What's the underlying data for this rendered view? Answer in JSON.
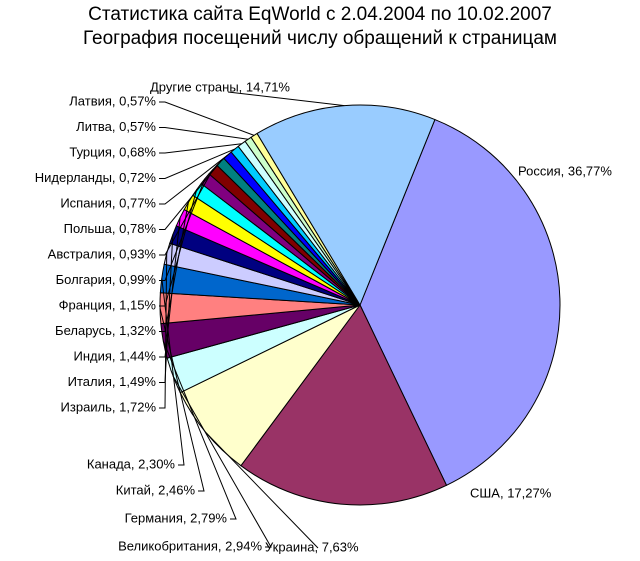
{
  "chart_data": {
    "type": "pie",
    "title": "Статистика сайта EqWorld с 2.04.2004 по 10.02.2007",
    "subtitle": "География посещений числу обращений к страницам",
    "slices": [
      {
        "name": "Россия",
        "label": "Россия, 36,77%",
        "value": 36.77,
        "color": "#9999ff"
      },
      {
        "name": "США",
        "label": "США, 17,27%",
        "value": 17.27,
        "color": "#993366"
      },
      {
        "name": "Украина",
        "label": "Украина, 7,63%",
        "value": 7.63,
        "color": "#ffffcc"
      },
      {
        "name": "Великобритания",
        "label": "Великобритания, 2,94%",
        "value": 2.94,
        "color": "#ccffff"
      },
      {
        "name": "Германия",
        "label": "Германия, 2,79%",
        "value": 2.79,
        "color": "#660066"
      },
      {
        "name": "Китай",
        "label": "Китай, 2,46%",
        "value": 2.46,
        "color": "#ff8080"
      },
      {
        "name": "Канада",
        "label": "Канада, 2,30%",
        "value": 2.3,
        "color": "#0066cc"
      },
      {
        "name": "Израиль",
        "label": "Израиль, 1,72%",
        "value": 1.72,
        "color": "#ccccff"
      },
      {
        "name": "Италия",
        "label": "Италия, 1,49%",
        "value": 1.49,
        "color": "#000080"
      },
      {
        "name": "Индия",
        "label": "Индия, 1,44%",
        "value": 1.44,
        "color": "#ff00ff"
      },
      {
        "name": "Беларусь",
        "label": "Беларусь, 1,32%",
        "value": 1.32,
        "color": "#ffff00"
      },
      {
        "name": "Франция",
        "label": "Франция, 1,15%",
        "value": 1.15,
        "color": "#00ffff"
      },
      {
        "name": "Болгария",
        "label": "Болгария, 0,99%",
        "value": 0.99,
        "color": "#800080"
      },
      {
        "name": "Австралия",
        "label": "Австралия, 0,93%",
        "value": 0.93,
        "color": "#800000"
      },
      {
        "name": "Польша",
        "label": "Польша, 0,78%",
        "value": 0.78,
        "color": "#008080"
      },
      {
        "name": "Испания",
        "label": "Испания, 0,77%",
        "value": 0.77,
        "color": "#0000ff"
      },
      {
        "name": "Нидерланды",
        "label": "Нидерланды, 0,72%",
        "value": 0.72,
        "color": "#00ccff"
      },
      {
        "name": "Турция",
        "label": "Турция, 0,68%",
        "value": 0.68,
        "color": "#ccffff"
      },
      {
        "name": "Литва",
        "label": "Литва, 0,57%",
        "value": 0.57,
        "color": "#ccffcc"
      },
      {
        "name": "Латвия",
        "label": "Латвия, 0,57%",
        "value": 0.57,
        "color": "#ffff99"
      },
      {
        "name": "Другие страны",
        "label": "Другие страны, 14,71%",
        "value": 14.71,
        "color": "#99ccff"
      }
    ],
    "start_angle_deg": -68,
    "direction": "clockwise",
    "legend": "none"
  }
}
